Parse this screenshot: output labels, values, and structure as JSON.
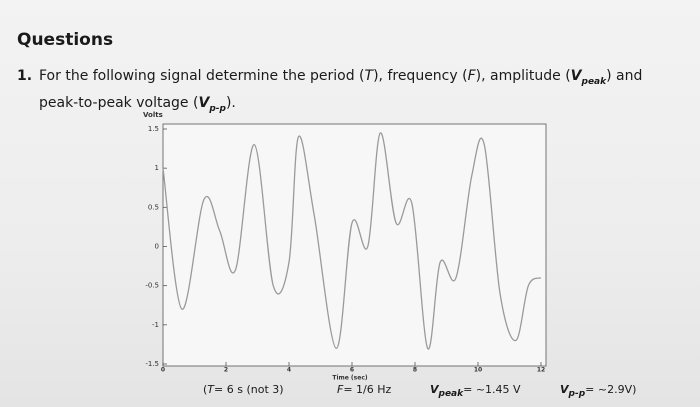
{
  "header": {
    "title": "Questions"
  },
  "question": {
    "number": "1.",
    "parts": [
      "For the following signal determine the period (",
      "T",
      "), frequency (",
      "F",
      "), amplitude (",
      "V",
      "peak",
      ") and peak-to-peak voltage (",
      "V",
      "p-p",
      ")."
    ]
  },
  "chart": {
    "type": "line",
    "y_label": "Volts",
    "x_label": "Time (sec)",
    "color": "#9a9a9a",
    "x": [
      0,
      0.6,
      1.3,
      1.8,
      2.3,
      2.9,
      3.5,
      4.0,
      4.3,
      4.8,
      5.5,
      6.0,
      6.5,
      6.9,
      7.4,
      7.9,
      8.4,
      8.8,
      9.3,
      9.8,
      10.2,
      10.7,
      11.2,
      11.6,
      12
    ],
    "values": [
      1.0,
      -0.8,
      0.6,
      0.2,
      -0.3,
      1.3,
      -0.5,
      -0.2,
      1.4,
      0.4,
      -1.3,
      0.3,
      0.0,
      1.45,
      0.3,
      0.55,
      -1.3,
      -0.2,
      -0.4,
      0.9,
      1.3,
      -0.6,
      -1.2,
      -0.5,
      -0.4
    ],
    "xlim": [
      0,
      12
    ],
    "ylim": [
      -1.5,
      1.5
    ],
    "xticks": [
      0,
      2,
      4,
      6,
      8,
      10,
      12
    ],
    "yticks": [
      1.5,
      1,
      0.5,
      0,
      -0.5,
      -1,
      -1.5
    ]
  },
  "answers": [
    {
      "parts": [
        "(",
        "T",
        "= 6 s (not 3)"
      ]
    },
    {
      "parts": [
        "F",
        "= 1/6 Hz"
      ]
    },
    {
      "parts": [
        "V",
        "peak",
        "= ~1.45 V"
      ]
    },
    {
      "parts": [
        "V",
        "p-p",
        "= ~2.9V)"
      ]
    }
  ]
}
